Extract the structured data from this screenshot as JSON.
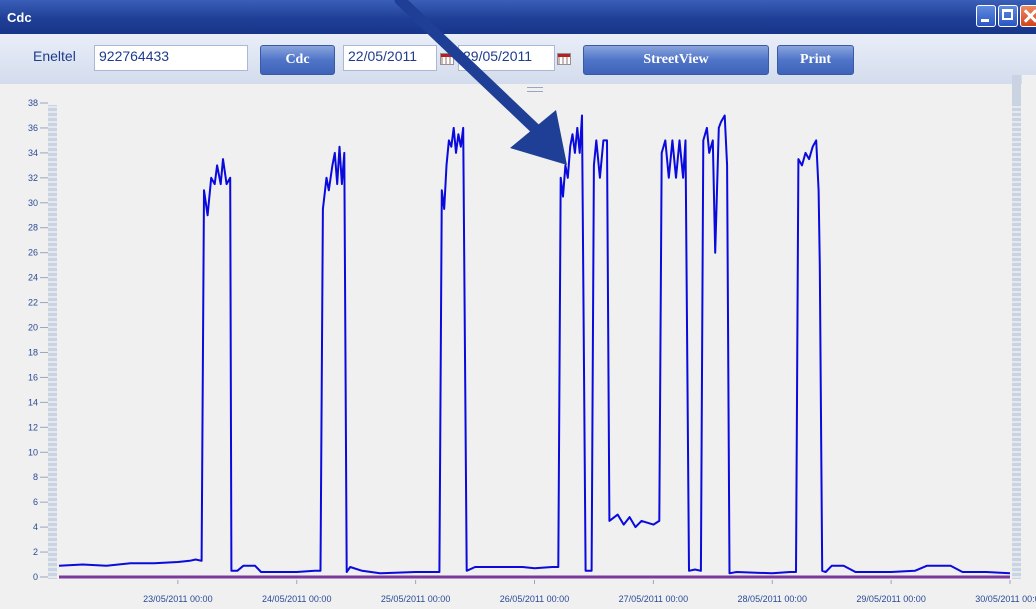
{
  "window": {
    "title": "Cdc"
  },
  "toolbar": {
    "eneltel_label": "Eneltel",
    "eneltel_value": "922764433",
    "cdc_button": "Cdc",
    "date_from": "22/05/2011",
    "date_to": "29/05/2011",
    "streetview_button": "StreetView",
    "print_button": "Print"
  },
  "colors": {
    "line": "#0a0adc",
    "baseline": "#7a3a9a",
    "titlebar": "#1f3f96",
    "arrow": "#1f3f96"
  },
  "chart_data": {
    "type": "line",
    "y_ticks": [
      "0",
      "2",
      "4",
      "6",
      "8",
      "10",
      "12",
      "14",
      "16",
      "18",
      "20",
      "22",
      "24",
      "26",
      "28",
      "30",
      "32",
      "34",
      "36",
      "38"
    ],
    "x_tick_labels": [
      "23/05/2011 00:00",
      "24/05/2011 00:00",
      "25/05/2011 00:00",
      "26/05/2011 00:00",
      "27/05/2011 00:00",
      "28/05/2011 00:00",
      "29/05/2011 00:00",
      "30/05/2011 00:00"
    ],
    "ylim": [
      0,
      38
    ],
    "xlim_days": [
      22.0,
      30.0
    ],
    "series": [
      {
        "values_day_y": [
          [
            22.0,
            0.9
          ],
          [
            22.2,
            1.0
          ],
          [
            22.4,
            0.9
          ],
          [
            22.6,
            1.1
          ],
          [
            22.8,
            1.1
          ],
          [
            23.0,
            1.2
          ],
          [
            23.1,
            1.3
          ],
          [
            23.15,
            1.4
          ],
          [
            23.2,
            1.3
          ],
          [
            23.22,
            31
          ],
          [
            23.25,
            29
          ],
          [
            23.28,
            32
          ],
          [
            23.31,
            31.5
          ],
          [
            23.33,
            33
          ],
          [
            23.36,
            31.5
          ],
          [
            23.38,
            33.5
          ],
          [
            23.41,
            31.5
          ],
          [
            23.44,
            32
          ],
          [
            23.45,
            0.5
          ],
          [
            23.5,
            0.5
          ],
          [
            23.55,
            0.9
          ],
          [
            23.65,
            0.9
          ],
          [
            23.7,
            0.4
          ],
          [
            24.0,
            0.4
          ],
          [
            24.15,
            0.5
          ],
          [
            24.2,
            0.5
          ],
          [
            24.22,
            29.5
          ],
          [
            24.25,
            32
          ],
          [
            24.27,
            31
          ],
          [
            24.3,
            33
          ],
          [
            24.32,
            34
          ],
          [
            24.34,
            31.5
          ],
          [
            24.36,
            34.5
          ],
          [
            24.38,
            31.5
          ],
          [
            24.4,
            34
          ],
          [
            24.42,
            0.4
          ],
          [
            24.45,
            0.8
          ],
          [
            24.55,
            0.5
          ],
          [
            24.7,
            0.3
          ],
          [
            25.0,
            0.4
          ],
          [
            25.15,
            0.4
          ],
          [
            25.2,
            0.4
          ],
          [
            25.22,
            31
          ],
          [
            25.24,
            29.5
          ],
          [
            25.26,
            33
          ],
          [
            25.28,
            35
          ],
          [
            25.3,
            34.5
          ],
          [
            25.32,
            36
          ],
          [
            25.34,
            34
          ],
          [
            25.36,
            35.5
          ],
          [
            25.38,
            34.5
          ],
          [
            25.4,
            36
          ],
          [
            25.43,
            0.5
          ],
          [
            25.5,
            0.8
          ],
          [
            25.7,
            0.8
          ],
          [
            25.9,
            0.8
          ],
          [
            26.0,
            0.7
          ],
          [
            26.15,
            0.8
          ],
          [
            26.2,
            0.8
          ],
          [
            26.22,
            32
          ],
          [
            26.24,
            30.5
          ],
          [
            26.26,
            33
          ],
          [
            26.28,
            32
          ],
          [
            26.3,
            34.5
          ],
          [
            26.32,
            35.5
          ],
          [
            26.34,
            34
          ],
          [
            26.36,
            36
          ],
          [
            26.38,
            34
          ],
          [
            26.4,
            37
          ],
          [
            26.43,
            0.5
          ],
          [
            26.48,
            0.5
          ],
          [
            26.5,
            33
          ],
          [
            26.52,
            35
          ],
          [
            26.55,
            32
          ],
          [
            26.58,
            35
          ],
          [
            26.61,
            35
          ],
          [
            26.63,
            4.5
          ],
          [
            26.7,
            5
          ],
          [
            26.75,
            4.2
          ],
          [
            26.8,
            4.8
          ],
          [
            26.85,
            4
          ],
          [
            26.9,
            4.5
          ],
          [
            27.0,
            4.2
          ],
          [
            27.05,
            4.5
          ],
          [
            27.07,
            34
          ],
          [
            27.1,
            35
          ],
          [
            27.13,
            32
          ],
          [
            27.16,
            35
          ],
          [
            27.19,
            32
          ],
          [
            27.22,
            35
          ],
          [
            27.25,
            32
          ],
          [
            27.27,
            35
          ],
          [
            27.3,
            0.5
          ],
          [
            27.35,
            0.6
          ],
          [
            27.4,
            0.5
          ],
          [
            27.42,
            35
          ],
          [
            27.45,
            36
          ],
          [
            27.47,
            34
          ],
          [
            27.5,
            35
          ],
          [
            27.52,
            26
          ],
          [
            27.55,
            36
          ],
          [
            27.57,
            36.5
          ],
          [
            27.6,
            37
          ],
          [
            27.62,
            33
          ],
          [
            27.64,
            0.3
          ],
          [
            27.7,
            0.4
          ],
          [
            28.0,
            0.3
          ],
          [
            28.15,
            0.4
          ],
          [
            28.2,
            0.4
          ],
          [
            28.22,
            33.5
          ],
          [
            28.25,
            33
          ],
          [
            28.28,
            34
          ],
          [
            28.31,
            33.5
          ],
          [
            28.34,
            34.5
          ],
          [
            28.37,
            35
          ],
          [
            28.39,
            31
          ],
          [
            28.4,
            25
          ],
          [
            28.42,
            0.5
          ],
          [
            28.45,
            0.4
          ],
          [
            28.5,
            0.9
          ],
          [
            28.6,
            0.9
          ],
          [
            28.7,
            0.4
          ],
          [
            29.0,
            0.4
          ],
          [
            29.2,
            0.5
          ],
          [
            29.3,
            0.9
          ],
          [
            29.5,
            0.9
          ],
          [
            29.6,
            0.4
          ],
          [
            29.8,
            0.4
          ],
          [
            30.0,
            0.3
          ]
        ]
      }
    ]
  }
}
